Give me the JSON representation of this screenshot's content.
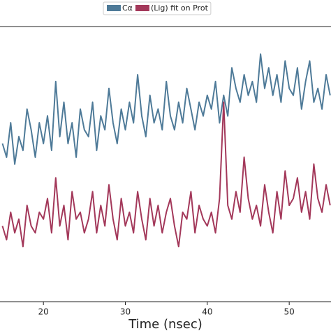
{
  "chart_data": {
    "type": "line",
    "xlabel": "Time (nsec)",
    "x": [
      15,
      15.5,
      16,
      16.5,
      17,
      17.5,
      18,
      18.5,
      19,
      19.5,
      20,
      20.5,
      21,
      21.5,
      22,
      22.5,
      23,
      23.5,
      24,
      24.5,
      25,
      25.5,
      26,
      26.5,
      27,
      27.5,
      28,
      28.5,
      29,
      29.5,
      30,
      30.5,
      31,
      31.5,
      32,
      32.5,
      33,
      33.5,
      34,
      34.5,
      35,
      35.5,
      36,
      36.5,
      37,
      37.5,
      38,
      38.5,
      39,
      39.5,
      40,
      40.5,
      41,
      41.5,
      42,
      42.5,
      43,
      43.5,
      44,
      44.5,
      45,
      45.5,
      46,
      46.5,
      47,
      47.5,
      48,
      48.5,
      49,
      49.5,
      50,
      50.5,
      51,
      51.5,
      52,
      52.5,
      53,
      53.5,
      54,
      54.5,
      55
    ],
    "series": [
      {
        "name": "Cα",
        "color": "#4e7a98",
        "values": [
          2.3,
          2.1,
          2.6,
          2.0,
          2.4,
          2.2,
          2.8,
          2.5,
          2.1,
          2.6,
          2.3,
          2.7,
          2.2,
          3.2,
          2.4,
          2.9,
          2.3,
          2.6,
          2.1,
          2.8,
          2.5,
          2.4,
          2.9,
          2.2,
          2.7,
          2.5,
          3.1,
          2.6,
          2.3,
          2.8,
          2.5,
          2.9,
          2.6,
          3.3,
          2.7,
          2.4,
          3.0,
          2.6,
          2.8,
          2.5,
          3.2,
          2.7,
          2.5,
          2.9,
          2.6,
          3.1,
          2.8,
          2.5,
          2.9,
          2.7,
          3.0,
          2.8,
          3.2,
          2.6,
          3.0,
          2.7,
          3.4,
          3.1,
          2.9,
          3.3,
          3.0,
          3.2,
          2.9,
          3.6,
          3.1,
          3.4,
          3.0,
          3.3,
          2.9,
          3.5,
          3.1,
          3.0,
          3.4,
          2.8,
          3.2,
          3.5,
          2.9,
          3.1,
          2.8,
          3.3,
          3.0
        ]
      },
      {
        "name": "(Lig) fit on Prot",
        "color": "#a3385a",
        "values": [
          1.1,
          0.9,
          1.3,
          1.0,
          1.2,
          0.8,
          1.4,
          1.1,
          1.0,
          1.3,
          1.2,
          1.5,
          1.0,
          1.8,
          1.1,
          1.4,
          0.9,
          1.6,
          1.2,
          1.3,
          1.0,
          1.2,
          1.6,
          1.0,
          1.4,
          1.1,
          1.7,
          1.2,
          0.9,
          1.5,
          1.1,
          1.3,
          1.0,
          1.6,
          1.2,
          0.9,
          1.5,
          1.1,
          1.4,
          1.0,
          1.3,
          1.5,
          1.1,
          0.8,
          1.3,
          1.2,
          1.6,
          1.0,
          1.4,
          1.2,
          1.1,
          1.3,
          1.0,
          1.5,
          2.9,
          1.4,
          1.2,
          1.6,
          1.3,
          2.1,
          1.5,
          1.2,
          1.4,
          1.1,
          1.7,
          1.3,
          1.0,
          1.6,
          1.2,
          1.9,
          1.4,
          1.5,
          1.8,
          1.3,
          1.6,
          1.2,
          2.0,
          1.5,
          1.3,
          1.7,
          1.4
        ]
      }
    ],
    "xlim": [
      14.7,
      55.1
    ],
    "xticks": [
      20,
      30,
      40,
      50
    ],
    "ylim": [
      0,
      4
    ],
    "legend": "top"
  }
}
